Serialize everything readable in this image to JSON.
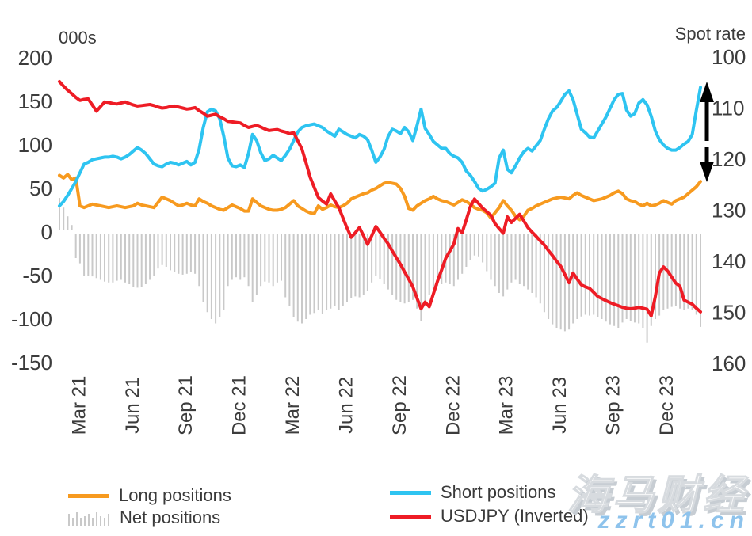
{
  "chart_data": {
    "type": "combo-line-bar",
    "description_units": "weekly observations",
    "left_axis": {
      "title": "000s",
      "ticks": [
        200,
        150,
        100,
        50,
        0,
        -50,
        -100,
        -150
      ],
      "lim": [
        -150,
        200
      ]
    },
    "right_axis": {
      "title": "Spot rate",
      "ticks": [
        100,
        110,
        120,
        130,
        140,
        150,
        160
      ],
      "lim": [
        100,
        160
      ],
      "inverted": true
    },
    "x_axis": {
      "tick_labels": [
        "Mar 21",
        "Jun 21",
        "Sep 21",
        "Dec 21",
        "Mar 22",
        "Jun 22",
        "Sep 22",
        "Dec 22",
        "Mar 23",
        "Jun 23",
        "Sep 23",
        "Dec 23"
      ],
      "tick_positions": [
        4.8,
        17.8,
        30.8,
        43.8,
        56.8,
        69.8,
        82.8,
        95.8,
        108.8,
        121.8,
        134.8,
        147.8
      ]
    },
    "grid": false,
    "legend_position": "bottom",
    "series": [
      {
        "name": "Net positions",
        "type": "bar",
        "axis": "left",
        "color": "#C9C9C9",
        "values": [
          39,
          28,
          18,
          8,
          -30,
          -36,
          -50,
          -50,
          -51,
          -53,
          -55,
          -57,
          -58,
          -58,
          -56,
          -55,
          -58,
          -60,
          -63,
          -64,
          -63,
          -60,
          -55,
          -50,
          -42,
          -38,
          -40,
          -44,
          -46,
          -48,
          -49,
          -48,
          -46,
          -48,
          -62,
          -80,
          -92,
          -100,
          -105,
          -98,
          -90,
          -62,
          -55,
          -52,
          -55,
          -52,
          -62,
          -80,
          -72,
          -62,
          -57,
          -58,
          -62,
          -58,
          -56,
          -75,
          -85,
          -98,
          -103,
          -105,
          -100,
          -95,
          -93,
          -90,
          -94,
          -90,
          -88,
          -85,
          -90,
          -85,
          -80,
          -76,
          -74,
          -75,
          -72,
          -68,
          -58,
          -50,
          -54,
          -60,
          -66,
          -72,
          -78,
          -80,
          -82,
          -80,
          -78,
          -88,
          -102,
          -85,
          -72,
          -66,
          -62,
          -60,
          -58,
          -60,
          -62,
          -55,
          -48,
          -40,
          -32,
          -27,
          -28,
          -35,
          -45,
          -55,
          -62,
          -70,
          -74,
          -66,
          -58,
          -55,
          -60,
          -62,
          -66,
          -70,
          -75,
          -82,
          -92,
          -100,
          -106,
          -110,
          -112,
          -114,
          -112,
          -105,
          -100,
          -97,
          -95,
          -96,
          -95,
          -98,
          -100,
          -103,
          -106,
          -108,
          -110,
          -104,
          -100,
          -102,
          -104,
          -105,
          -110,
          -127,
          -108,
          -100,
          -96,
          -90,
          -88,
          -86,
          -85,
          -88,
          -90,
          -88,
          -90,
          -95,
          -109
        ]
      },
      {
        "name": "Long positions",
        "type": "line",
        "axis": "left",
        "color": "#F79A1F",
        "values": [
          65,
          62,
          66,
          60,
          62,
          30,
          28,
          30,
          32,
          31,
          30,
          29,
          28,
          29,
          30,
          29,
          28,
          29,
          30,
          33,
          31,
          30,
          29,
          28,
          34,
          40,
          38,
          36,
          33,
          30,
          31,
          33,
          31,
          30,
          38,
          35,
          33,
          30,
          28,
          26,
          25,
          28,
          31,
          29,
          27,
          24,
          24,
          38,
          34,
          30,
          28,
          26,
          25,
          25,
          26,
          28,
          32,
          36,
          30,
          27,
          24,
          22,
          21,
          30,
          26,
          28,
          31,
          29,
          28,
          30,
          33,
          38,
          40,
          42,
          44,
          45,
          48,
          50,
          53,
          56,
          57,
          56,
          55,
          50,
          41,
          27,
          25,
          30,
          33,
          36,
          38,
          41,
          38,
          36,
          35,
          33,
          31,
          34,
          37,
          35,
          32,
          28,
          26,
          25,
          22,
          16,
          22,
          28,
          36,
          30,
          25,
          18,
          14,
          18,
          25,
          27,
          30,
          32,
          34,
          36,
          38,
          39,
          40,
          39,
          38,
          42,
          45,
          42,
          40,
          38,
          36,
          37,
          38,
          40,
          42,
          45,
          47,
          44,
          38,
          36,
          35,
          32,
          30,
          33,
          30,
          31,
          33,
          36,
          34,
          32,
          36,
          38,
          40,
          44,
          48,
          52,
          58
        ]
      },
      {
        "name": "Short positions",
        "type": "line",
        "axis": "left",
        "color": "#2EC4F1",
        "values": [
          30,
          35,
          42,
          50,
          58,
          68,
          78,
          80,
          83,
          84,
          85,
          86,
          86,
          87,
          86,
          84,
          86,
          89,
          93,
          97,
          94,
          90,
          84,
          78,
          76,
          75,
          78,
          80,
          79,
          77,
          79,
          81,
          77,
          80,
          95,
          120,
          138,
          141,
          139,
          130,
          110,
          85,
          76,
          75,
          77,
          74,
          90,
          112,
          105,
          91,
          82,
          84,
          88,
          85,
          82,
          88,
          95,
          105,
          115,
          120,
          122,
          123,
          124,
          122,
          120,
          116,
          113,
          110,
          118,
          115,
          112,
          110,
          108,
          112,
          110,
          106,
          94,
          80,
          86,
          95,
          110,
          118,
          116,
          113,
          120,
          115,
          105,
          122,
          141,
          119,
          112,
          104,
          100,
          96,
          96,
          90,
          87,
          85,
          80,
          70,
          65,
          58,
          50,
          47,
          49,
          52,
          56,
          85,
          94,
          72,
          68,
          76,
          85,
          92,
          96,
          93,
          99,
          105,
          118,
          130,
          139,
          143,
          150,
          158,
          162,
          152,
          135,
          118,
          114,
          109,
          108,
          116,
          124,
          132,
          142,
          152,
          158,
          159,
          140,
          133,
          136,
          148,
          152,
          146,
          133,
          116,
          106,
          100,
          96,
          94,
          94,
          97,
          101,
          104,
          112,
          140,
          166
        ]
      },
      {
        "name": "USDJPY (Inverted)",
        "type": "line",
        "axis": "right",
        "color": "#EE1C25",
        "values": [
          104.8,
          105.7,
          106.5,
          107.2,
          107.9,
          108.5,
          108.3,
          108.2,
          109.4,
          110.6,
          109.7,
          108.8,
          108.9,
          109.1,
          109.2,
          109.0,
          108.8,
          109.1,
          109.4,
          109.6,
          109.5,
          109.4,
          109.3,
          109.5,
          109.8,
          110.0,
          109.9,
          109.7,
          109.6,
          109.8,
          110.0,
          110.2,
          110.1,
          109.9,
          110.5,
          111.0,
          111.6,
          111.4,
          111.2,
          111.7,
          112.1,
          112.6,
          112.7,
          112.8,
          112.9,
          113.4,
          113.8,
          113.6,
          113.4,
          113.7,
          114.1,
          114.4,
          114.3,
          114.2,
          114.5,
          114.7,
          115.0,
          114.8,
          116.4,
          118.0,
          120.7,
          123.5,
          125.5,
          127.5,
          128.2,
          128.8,
          126.8,
          128.2,
          129.5,
          131.5,
          133.5,
          135.3,
          134.4,
          133.4,
          135.0,
          136.7,
          135.0,
          133.2,
          134.3,
          135.5,
          136.6,
          138.0,
          139.3,
          140.6,
          142.1,
          143.5,
          145.0,
          147.2,
          149.3,
          148.0,
          148.9,
          146.4,
          143.9,
          141.7,
          139.4,
          138.0,
          136.6,
          133.6,
          134.4,
          131.9,
          129.3,
          127.8,
          128.7,
          129.6,
          130.3,
          131.0,
          132.6,
          133.6,
          134.5,
          131.3,
          132.4,
          131.6,
          130.8,
          132.1,
          133.4,
          134.3,
          135.1,
          136.0,
          136.8,
          137.9,
          138.9,
          140.0,
          141.0,
          142.6,
          144.2,
          142.3,
          143.5,
          144.6,
          145.0,
          145.3,
          146.1,
          146.9,
          147.3,
          147.7,
          148.1,
          148.4,
          148.7,
          149.0,
          149.2,
          149.3,
          149.2,
          149.0,
          149.2,
          149.4,
          150.7,
          146.9,
          142.3,
          141.1,
          141.9,
          143.1,
          144.3,
          144.9,
          147.6,
          148.0,
          148.4,
          149.2,
          149.9
        ]
      }
    ]
  },
  "annotation": {
    "double_arrow": {
      "x": 892,
      "up_tip": 103,
      "up_tail": 178,
      "down_tail": 186,
      "down_tip": 230,
      "color": "#000000"
    }
  },
  "legend": {
    "items": [
      {
        "id": "long",
        "label": "Long positions",
        "swatch": "line",
        "color": "#F79A1F"
      },
      {
        "id": "net",
        "label": "Net positions",
        "swatch": "bars",
        "color": "#C9C9C9"
      },
      {
        "id": "short",
        "label": "Short positions",
        "swatch": "line",
        "color": "#2EC4F1"
      },
      {
        "id": "usdjpy",
        "label": "USDJPY (Inverted)",
        "swatch": "line",
        "color": "#EE1C25"
      }
    ]
  },
  "watermark": {
    "brand": "海马财经",
    "site": "zzrt01.cn"
  }
}
